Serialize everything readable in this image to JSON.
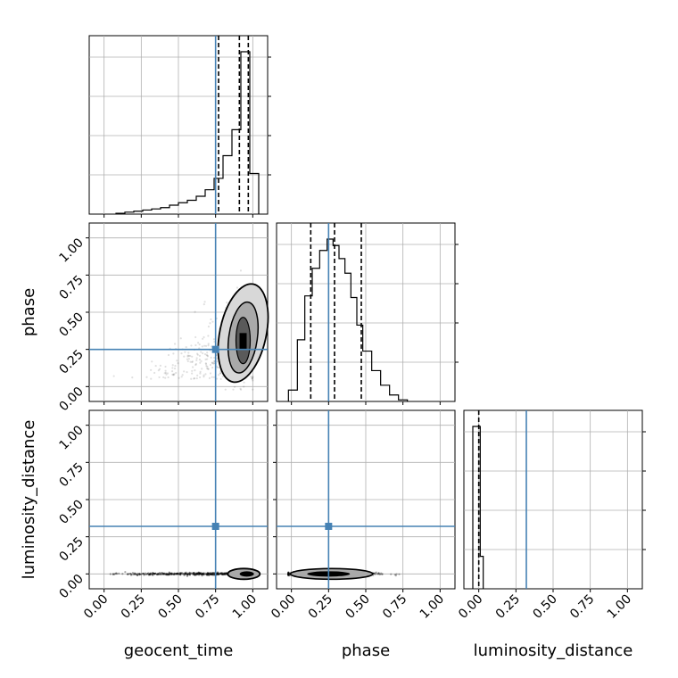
{
  "chart_data": {
    "type": "corner",
    "parameters": [
      "geocent_time",
      "phase",
      "luminosity_distance"
    ],
    "truth_color": "#4682b4",
    "truths": {
      "geocent_time": 0.75,
      "phase": 0.25,
      "luminosity_distance": 0.32
    },
    "axis_range": [
      -0.1,
      1.1
    ],
    "tick_labels": [
      "0.00",
      "0.25",
      "0.50",
      "0.75",
      "1.00"
    ],
    "tick_values": [
      0,
      0.25,
      0.5,
      0.75,
      1.0
    ],
    "grid": true,
    "histograms": {
      "geocent_time": {
        "bin_edges": [
          0.08,
          0.14,
          0.2,
          0.26,
          0.32,
          0.38,
          0.44,
          0.5,
          0.56,
          0.62,
          0.68,
          0.74,
          0.8,
          0.86,
          0.92,
          0.98,
          1.04
        ],
        "counts": [
          0.005,
          0.012,
          0.018,
          0.025,
          0.032,
          0.04,
          0.055,
          0.07,
          0.085,
          0.11,
          0.15,
          0.22,
          0.36,
          0.52,
          1.0,
          0.25
        ],
        "quantile_lines": [
          0.77,
          0.91,
          0.97
        ]
      },
      "phase": {
        "bin_edges": [
          -0.02,
          0.04,
          0.09,
          0.14,
          0.19,
          0.24,
          0.28,
          0.32,
          0.36,
          0.4,
          0.44,
          0.48,
          0.54,
          0.6,
          0.66,
          0.72,
          0.78
        ],
        "counts": [
          0.07,
          0.38,
          0.65,
          0.82,
          0.93,
          1.0,
          0.96,
          0.88,
          0.79,
          0.64,
          0.47,
          0.31,
          0.19,
          0.1,
          0.04,
          0.01
        ],
        "quantile_lines": [
          0.13,
          0.29,
          0.47
        ]
      },
      "luminosity_distance": {
        "bin_edges": [
          -0.04,
          -0.02,
          0.01,
          0.03
        ],
        "counts": [
          1.0,
          1.0,
          0.2
        ],
        "quantile_lines": [
          0.0
        ]
      }
    },
    "scatter_panels": [
      {
        "x": "geocent_time",
        "y": "phase"
      },
      {
        "x": "geocent_time",
        "y": "luminosity_distance"
      },
      {
        "x": "phase",
        "y": "luminosity_distance"
      }
    ]
  }
}
